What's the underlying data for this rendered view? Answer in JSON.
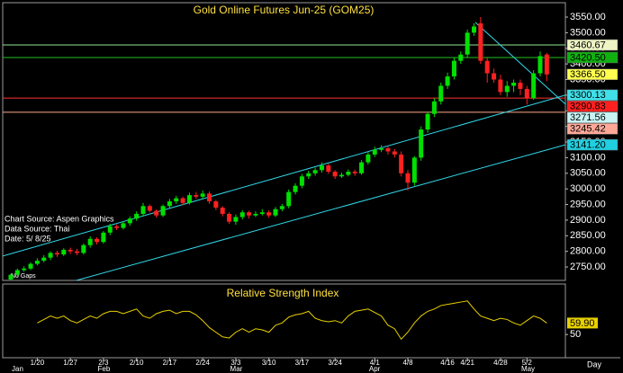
{
  "chart_data": {
    "type": "candlestick",
    "title": "Gold Online Futures Jun-25 (GOM25)",
    "notes": [
      "Chart Source: Aspen Graphics",
      "Data Source: Thai",
      "Date:   5/ 8/25"
    ],
    "gap_note": "No Gaps",
    "x_axis_label": "Day",
    "categories": [
      null,
      null,
      null,
      null,
      "1/20",
      null,
      null,
      null,
      null,
      "1/27",
      null,
      null,
      null,
      null,
      "2/3",
      null,
      null,
      null,
      null,
      "2/10",
      null,
      null,
      null,
      null,
      "2/17",
      null,
      null,
      null,
      null,
      "2/24",
      null,
      null,
      null,
      null,
      "3/3",
      null,
      null,
      null,
      null,
      "3/10",
      null,
      null,
      null,
      null,
      "3/17",
      null,
      null,
      null,
      null,
      "3/24",
      null,
      null,
      null,
      null,
      null,
      "4/1",
      null,
      null,
      null,
      null,
      "4/8",
      null,
      null,
      null,
      null,
      null,
      "4/16",
      null,
      null,
      "4/21",
      null,
      null,
      null,
      null,
      "4/28",
      null,
      null,
      null,
      "5/2",
      null,
      null,
      null
    ],
    "months": [
      "Jan",
      null,
      null,
      null,
      null,
      null,
      null,
      null,
      null,
      null,
      null,
      null,
      null,
      "Feb",
      null,
      null,
      null,
      null,
      null,
      null,
      null,
      null,
      null,
      null,
      null,
      null,
      null,
      null,
      null,
      null,
      null,
      null,
      null,
      "Mar",
      null,
      null,
      null,
      null,
      null,
      null,
      null,
      null,
      null,
      null,
      null,
      null,
      null,
      null,
      null,
      null,
      null,
      null,
      null,
      null,
      "Apr",
      null,
      null,
      null,
      null,
      null,
      null,
      null,
      null,
      null,
      null,
      null,
      null,
      null,
      null,
      null,
      null,
      null,
      null,
      null,
      null,
      null,
      null,
      "May",
      null,
      null,
      null,
      null
    ],
    "open": [
      2710,
      2725,
      2740,
      2745,
      2760,
      2770,
      2780,
      2795,
      2790,
      2805,
      2800,
      2795,
      2820,
      2840,
      2830,
      2860,
      2880,
      2875,
      2890,
      2905,
      2920,
      2945,
      2930,
      2915,
      2945,
      2960,
      2970,
      2955,
      2980,
      2975,
      2985,
      2960,
      2940,
      2920,
      2895,
      2910,
      2925,
      2915,
      2920,
      2925,
      2915,
      2935,
      2945,
      2990,
      3010,
      3040,
      3050,
      3060,
      3075,
      3055,
      3040,
      3045,
      3055,
      3050,
      3085,
      3110,
      3125,
      3130,
      3120,
      3110,
      3050,
      3020,
      3100,
      3190,
      3240,
      3280,
      3330,
      3360,
      3410,
      3430,
      3500,
      3530,
      3410,
      3370,
      3350,
      3310,
      3330,
      3340,
      3320,
      3290,
      3370,
      3430
    ],
    "high": [
      2728,
      2745,
      2752,
      2765,
      2778,
      2788,
      2800,
      2802,
      2810,
      2812,
      2808,
      2825,
      2848,
      2845,
      2865,
      2888,
      2886,
      2895,
      2912,
      2928,
      2955,
      2950,
      2935,
      2950,
      2968,
      2978,
      2975,
      2988,
      2990,
      2995,
      2992,
      2965,
      2945,
      2925,
      2918,
      2932,
      2930,
      2928,
      2935,
      2932,
      2942,
      2952,
      2998,
      3018,
      3048,
      3058,
      3068,
      3085,
      3080,
      3060,
      3052,
      3062,
      3062,
      3092,
      3118,
      3135,
      3140,
      3135,
      3128,
      3120,
      3060,
      3105,
      3200,
      3248,
      3290,
      3340,
      3372,
      3420,
      3440,
      3510,
      3530,
      3550,
      3420,
      3385,
      3365,
      3345,
      3350,
      3350,
      3330,
      3380,
      3440,
      3435
    ],
    "low": [
      2700,
      2718,
      2735,
      2740,
      2755,
      2765,
      2772,
      2782,
      2785,
      2792,
      2788,
      2790,
      2812,
      2822,
      2825,
      2852,
      2868,
      2870,
      2882,
      2898,
      2912,
      2925,
      2908,
      2910,
      2938,
      2952,
      2948,
      2950,
      2968,
      2968,
      2952,
      2932,
      2912,
      2888,
      2885,
      2902,
      2905,
      2910,
      2915,
      2908,
      2910,
      2928,
      2938,
      2982,
      3002,
      3032,
      3042,
      3052,
      3048,
      3032,
      3035,
      3040,
      3042,
      3045,
      3078,
      3102,
      3118,
      3110,
      3100,
      3040,
      2995,
      3010,
      3090,
      3180,
      3230,
      3270,
      3320,
      3350,
      3400,
      3420,
      3490,
      3400,
      3340,
      3340,
      3300,
      3295,
      3310,
      3300,
      3270,
      3285,
      3360,
      3345
    ],
    "close": [
      2725,
      2740,
      2745,
      2760,
      2770,
      2780,
      2795,
      2790,
      2805,
      2800,
      2795,
      2820,
      2840,
      2830,
      2860,
      2880,
      2875,
      2890,
      2905,
      2920,
      2945,
      2930,
      2915,
      2945,
      2960,
      2970,
      2955,
      2980,
      2975,
      2985,
      2960,
      2940,
      2920,
      2895,
      2910,
      2925,
      2915,
      2920,
      2925,
      2915,
      2935,
      2945,
      2990,
      3010,
      3040,
      3050,
      3060,
      3075,
      3055,
      3040,
      3045,
      3055,
      3050,
      3085,
      3110,
      3125,
      3130,
      3120,
      3110,
      3050,
      3020,
      3100,
      3190,
      3240,
      3280,
      3330,
      3360,
      3410,
      3430,
      3500,
      3520,
      3410,
      3370,
      3350,
      3310,
      3330,
      3340,
      3320,
      3290,
      3370,
      3425,
      3366.5
    ],
    "last_price_label": "3366.50",
    "last_price_bg": "#ffff50",
    "up_color": "#00e000",
    "down_color": "#ff2020",
    "ylim": [
      2707,
      3596
    ],
    "yticks": [
      {
        "value": 2750,
        "label": "2750.00"
      },
      {
        "value": 2800,
        "label": "2800.00"
      },
      {
        "value": 2850,
        "label": "2850.00"
      },
      {
        "value": 2900,
        "label": "2900.00"
      },
      {
        "value": 2950,
        "label": "2950.00"
      },
      {
        "value": 3000,
        "label": "3000.00"
      },
      {
        "value": 3050,
        "label": "3050.00"
      },
      {
        "value": 3100,
        "label": "3100.00"
      },
      {
        "value": 3150,
        "label": "3150.00"
      },
      {
        "value": 3200,
        "label": "3200.00"
      },
      {
        "value": 3250,
        "label": "3250.00"
      },
      {
        "value": 3300,
        "label": "3300.00"
      },
      {
        "value": 3350,
        "label": "3350.00"
      },
      {
        "value": 3400,
        "label": "3400.00"
      },
      {
        "value": 3450,
        "label": "3450.00"
      },
      {
        "value": 3500,
        "label": "3500.00"
      },
      {
        "value": 3550,
        "label": "3550.00"
      }
    ],
    "hlines": [
      {
        "value": 3460.67,
        "color": "#90e890",
        "label_bg": "#eef4c4"
      },
      {
        "value": {
          "value": 3420.5,
          "label": "3420.50"
        },
        "color": "#20c020",
        "label_bg": "#10b010"
      },
      {
        "value": 3290.83,
        "color": "#ff3030",
        "label_bg": "#ff2020"
      },
      {
        "value": 3245.42,
        "color": "#ffa888",
        "label_bg": "#ffa898"
      }
    ],
    "trendlines": [
      {
        "x": [
          -1.22,
          83.8
        ],
        "start": 2785,
        "end": 3300.13,
        "color": "#30d8e8",
        "label_bg": "#40e0e8"
      },
      {
        "x": [
          9.9,
          83.8
        ],
        "start": 2707,
        "end": {
          "value": 3141.2,
          "label": "3141.20"
        },
        "color": "#30d8e8",
        "label_bg": "#20d0e0"
      },
      {
        "x": [
          70.2,
          83.8
        ],
        "start": 3533,
        "end": 3271.56,
        "color": "#30d8e8",
        "label_bg": "#c8f4f4"
      }
    ],
    "rsi": {
      "title": "Relative Strength Index",
      "color": "#e8d000",
      "ylim": [
        30,
        92
      ],
      "yticks": [
        50
      ],
      "last_label": "59.90",
      "values": [
        null,
        null,
        null,
        null,
        60,
        63,
        66,
        64,
        66,
        62,
        60,
        63,
        66,
        64,
        68,
        70,
        70,
        68,
        70,
        72,
        66,
        64,
        68,
        70,
        71,
        68,
        70,
        70,
        67,
        62,
        56,
        52,
        48,
        47,
        52,
        55,
        52,
        55,
        54,
        52,
        58,
        60,
        65,
        67,
        68,
        70,
        64,
        62,
        61,
        62,
        60,
        66,
        70,
        71,
        72,
        69,
        66,
        58,
        55,
        46,
        52,
        60,
        66,
        70,
        72,
        75,
        76,
        77,
        78,
        79,
        72,
        66,
        64,
        62,
        64,
        63,
        60,
        58,
        62,
        66,
        64,
        59.9
      ]
    }
  }
}
